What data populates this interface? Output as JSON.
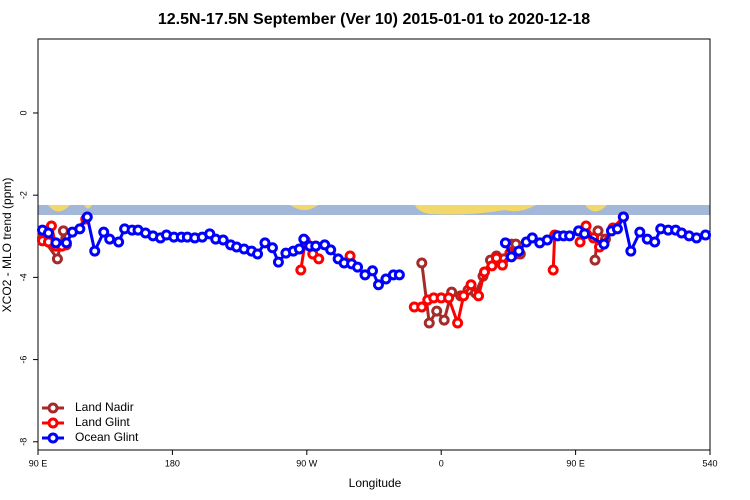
{
  "chart_data": {
    "type": "line",
    "title": "12.5N-17.5N September (Ver 10)   2015-01-01 to 2020-12-18",
    "x_label": "Longitude",
    "y_label": "XCO2 - MLO trend (ppm)",
    "xlim": [
      90,
      540
    ],
    "xticks": [
      {
        "value": 90,
        "label": "90 E"
      },
      180,
      {
        "value": 270,
        "label": "90 W"
      },
      {
        "value": 360,
        "label": "0"
      },
      {
        "value": 450,
        "label": "90 E"
      },
      540
    ],
    "ylim": [
      -8.2,
      1.8
    ],
    "yticks": [
      0,
      -2,
      -4,
      -6,
      -8
    ],
    "legend": "bottom-left",
    "series": [
      {
        "name": "Land Nadir",
        "color": "#a52a2a",
        "x": [
          93,
          103,
          107,
          109,
          200,
          269,
          276,
          330,
          347,
          352,
          357,
          362,
          367,
          373,
          378,
          383,
          388,
          393,
          397,
          402,
          407,
          410,
          413,
          440,
          463,
          465,
          470,
          482
        ],
        "values": [
          -3.04,
          -3.55,
          -2.87,
          -3.21,
          null,
          -3.21,
          -3.24,
          null,
          -3.65,
          -5.11,
          -4.82,
          -5.04,
          -4.36,
          -4.45,
          -4.31,
          -4.38,
          -3.97,
          -3.58,
          -3.48,
          -3.55,
          -3.19,
          -3.19,
          -3.43,
          null,
          -3.58,
          -2.87,
          -3.07,
          -2.53
        ]
      },
      {
        "name": "Land Glint",
        "color": "#ff0000",
        "x": [
          93,
          97,
          99,
          102,
          106,
          122,
          200,
          266,
          269,
          274,
          278,
          290,
          299,
          330,
          342,
          347,
          351,
          355,
          360,
          365,
          371,
          375,
          380,
          385,
          389,
          394,
          397,
          401,
          406,
          410,
          420,
          435,
          436,
          445,
          453,
          457,
          462,
          466,
          475,
          482
        ],
        "values": [
          -3.11,
          -3.14,
          -2.75,
          -3.24,
          -3.24,
          -2.58,
          null,
          -3.82,
          -3.11,
          -3.43,
          -3.55,
          null,
          -3.48,
          null,
          -4.72,
          -4.72,
          -4.55,
          -4.5,
          -4.5,
          -4.5,
          -5.11,
          -4.45,
          -4.18,
          -4.45,
          -3.87,
          -3.72,
          -3.53,
          -3.7,
          -3.41,
          -3.43,
          null,
          -3.82,
          -2.97,
          null,
          -3.14,
          -2.75,
          -3.04,
          -3.26,
          -2.8,
          -2.53
        ]
      },
      {
        "name": "Ocean Glint",
        "color": "#0000ff",
        "x": [
          93,
          97,
          102,
          109,
          113,
          118,
          123,
          128,
          134,
          138,
          144,
          148,
          153,
          157,
          162,
          167,
          172,
          176,
          181,
          186,
          190,
          195,
          200,
          205,
          209,
          214,
          219,
          223,
          228,
          233,
          237,
          242,
          247,
          251,
          256,
          261,
          265,
          268,
          272,
          276,
          282,
          286,
          291,
          295,
          300,
          304,
          309,
          314,
          318,
          323,
          328,
          332,
          360,
          403,
          407,
          412,
          417,
          421,
          426,
          431,
          438,
          442,
          446,
          452,
          456,
          469,
          474,
          478,
          482,
          487,
          493,
          498,
          503,
          507,
          512,
          517,
          521,
          526,
          531,
          537
        ],
        "values": [
          -2.85,
          -2.92,
          -3.16,
          -3.16,
          -2.9,
          -2.82,
          -2.53,
          -3.36,
          -2.9,
          -3.07,
          -3.14,
          -2.82,
          -2.85,
          -2.85,
          -2.92,
          -2.99,
          -3.04,
          -2.97,
          -3.02,
          -3.02,
          -3.02,
          -3.04,
          -3.02,
          -2.94,
          -3.07,
          -3.09,
          -3.21,
          -3.26,
          -3.31,
          -3.36,
          -3.43,
          -3.16,
          -3.28,
          -3.63,
          -3.41,
          -3.36,
          -3.31,
          -3.07,
          -3.24,
          -3.24,
          -3.21,
          -3.33,
          -3.55,
          -3.65,
          -3.67,
          -3.75,
          -3.94,
          -3.84,
          -4.18,
          -4.04,
          -3.94,
          -3.94,
          null,
          -3.16,
          -3.5,
          -3.36,
          -3.14,
          -3.04,
          -3.16,
          -3.09,
          -2.99,
          -2.99,
          -2.99,
          -2.87,
          -2.94,
          -3.19,
          -2.87,
          -2.82,
          -2.53,
          -3.36,
          -2.9,
          -3.07,
          -3.14,
          -2.82,
          -2.85,
          -2.85,
          -2.92,
          -2.99,
          -3.04,
          -2.97
        ]
      }
    ]
  }
}
